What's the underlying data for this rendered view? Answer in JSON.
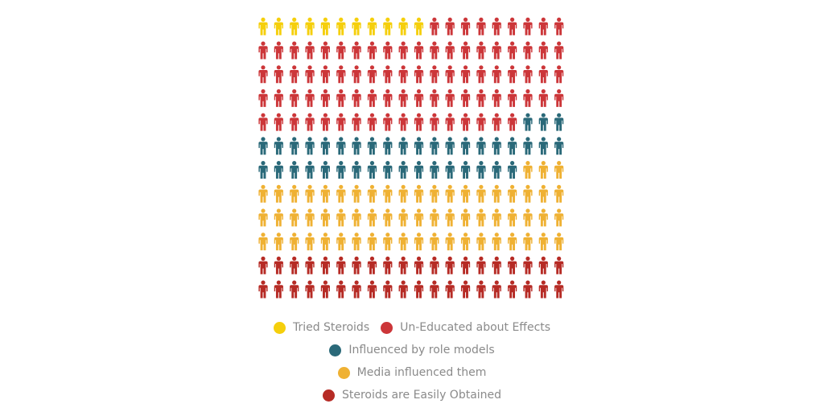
{
  "chart_data": {
    "type": "pictogram",
    "unit": "person",
    "icon": "person-icon",
    "total": 240,
    "grid": {
      "columns": 20,
      "rows": 12
    },
    "fill_order": "row-major",
    "series": [
      {
        "name": "Tried Steroids",
        "value": 11,
        "color": "#f5cf0c"
      },
      {
        "name": "Un-Educated about Effects",
        "value": 86,
        "color": "#cc3639"
      },
      {
        "name": "Influenced by role models",
        "value": 40,
        "color": "#2a6979"
      },
      {
        "name": "Media influenced them",
        "value": 63,
        "color": "#efb133"
      },
      {
        "name": "Steroids are Easily Obtained",
        "value": 40,
        "color": "#b62b25"
      }
    ],
    "legend": {
      "position": "bottom",
      "rows": [
        [
          0,
          1
        ],
        [
          2
        ],
        [
          3
        ],
        [
          4
        ]
      ]
    },
    "title": "",
    "xlabel": "",
    "ylabel": ""
  }
}
